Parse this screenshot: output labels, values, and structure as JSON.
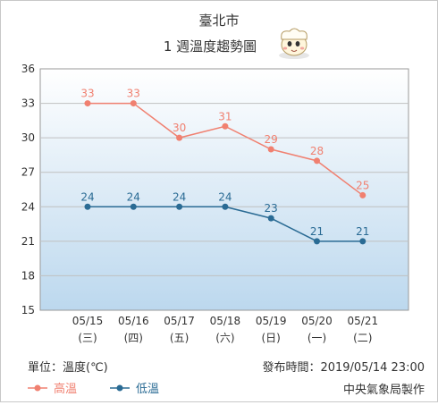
{
  "header": {
    "city": "臺北市",
    "subtitle": "1 週溫度趨勢圖",
    "mascot_icon": "weather-mascot-icon"
  },
  "footer": {
    "unit_label": "單位：溫度(℃)",
    "publish_label": "發布時間：2019/05/14 23:00",
    "source_label": "中央氣象局製作"
  },
  "colors": {
    "high": "#f08070",
    "low": "#2a6b94",
    "plot_top": "#ffffff",
    "plot_bottom": "#bcd8ee",
    "grid": "#c0c0c0"
  },
  "chart_data": {
    "type": "line",
    "x": [
      "05/15",
      "05/16",
      "05/17",
      "05/18",
      "05/19",
      "05/20",
      "05/21"
    ],
    "x_sub": [
      "(三)",
      "(四)",
      "(五)",
      "(六)",
      "(日)",
      "(一)",
      "(二)"
    ],
    "series": [
      {
        "name": "高溫",
        "key": "high",
        "values": [
          33,
          33,
          30,
          31,
          29,
          28,
          25
        ]
      },
      {
        "name": "低溫",
        "key": "low",
        "values": [
          24,
          24,
          24,
          24,
          23,
          21,
          21
        ]
      }
    ],
    "ylim": [
      15,
      36
    ],
    "yticks": [
      15,
      18,
      21,
      24,
      27,
      30,
      33,
      36
    ],
    "grid": true,
    "legend": "bottom-left"
  }
}
